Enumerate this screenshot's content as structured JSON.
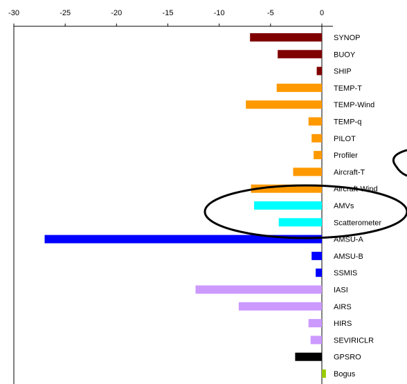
{
  "chart_data": {
    "type": "bar",
    "orientation": "horizontal",
    "title": "",
    "xlabel": "",
    "ylabel": "",
    "xlim": [
      -30,
      0
    ],
    "xticks": [
      "-30",
      "-25",
      "-20",
      "-15",
      "-10",
      "-5",
      "0"
    ],
    "xaxis_position": "top",
    "grid": false,
    "categories": [
      "SYNOP",
      "BUOY",
      "SHIP",
      "TEMP-T",
      "TEMP-Wind",
      "TEMP-q",
      "PILOT",
      "Profiler",
      "Aircraft-T",
      "Aircraft-Wind",
      "AMVs",
      "Scatterometer",
      "AMSU-A",
      "AMSU-B",
      "SSMIS",
      "IASI",
      "AIRS",
      "HIRS",
      "SEVIRICLR",
      "GPSRO",
      "Bogus"
    ],
    "values": [
      -7.0,
      -4.3,
      -0.5,
      -4.4,
      -7.4,
      -1.3,
      -1.0,
      -0.8,
      -2.8,
      -6.9,
      -6.6,
      -4.2,
      -27.0,
      -1.0,
      -0.6,
      -12.3,
      -8.1,
      -1.3,
      -1.1,
      -2.6,
      0.4
    ],
    "bar_colors": [
      "#800000",
      "#800000",
      "#800000",
      "#ff9900",
      "#ff9900",
      "#ff9900",
      "#ff9900",
      "#ff9900",
      "#ff9900",
      "#ff9900",
      "#00ffff",
      "#00ffff",
      "#0000ff",
      "#0000ff",
      "#0000ff",
      "#cc99ff",
      "#cc99ff",
      "#cc99ff",
      "#cc99ff",
      "#000000",
      "#99cc00"
    ],
    "annotations": [
      {
        "shape": "ellipse",
        "encloses": [
          "AMVs",
          "Scatterometer"
        ]
      },
      {
        "shape": "ellipse",
        "encloses": [
          "Aircraft-T"
        ],
        "partially_visible": true
      }
    ]
  }
}
